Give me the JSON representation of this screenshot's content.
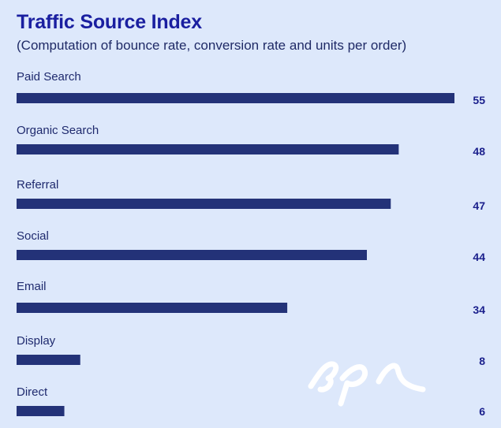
{
  "title": "Traffic Source Index",
  "subtitle": "(Computation of bounce rate, conversion rate and units per order)",
  "colors": {
    "bar": "#233278",
    "background": "#dde8fb",
    "title": "#1a1fa0"
  },
  "logo": {
    "icon": "epi-logo-icon"
  },
  "chart_data": {
    "type": "bar",
    "orientation": "horizontal",
    "title": "Traffic Source Index",
    "subtitle": "(Computation of bounce rate, conversion rate and units per order)",
    "categories": [
      "Paid Search",
      "Organic Search",
      "Referral",
      "Social",
      "Email",
      "Display",
      "Direct"
    ],
    "values": [
      55,
      48,
      47,
      44,
      34,
      8,
      6
    ],
    "xlim": [
      0,
      55
    ],
    "grid": false,
    "legend": "none"
  }
}
